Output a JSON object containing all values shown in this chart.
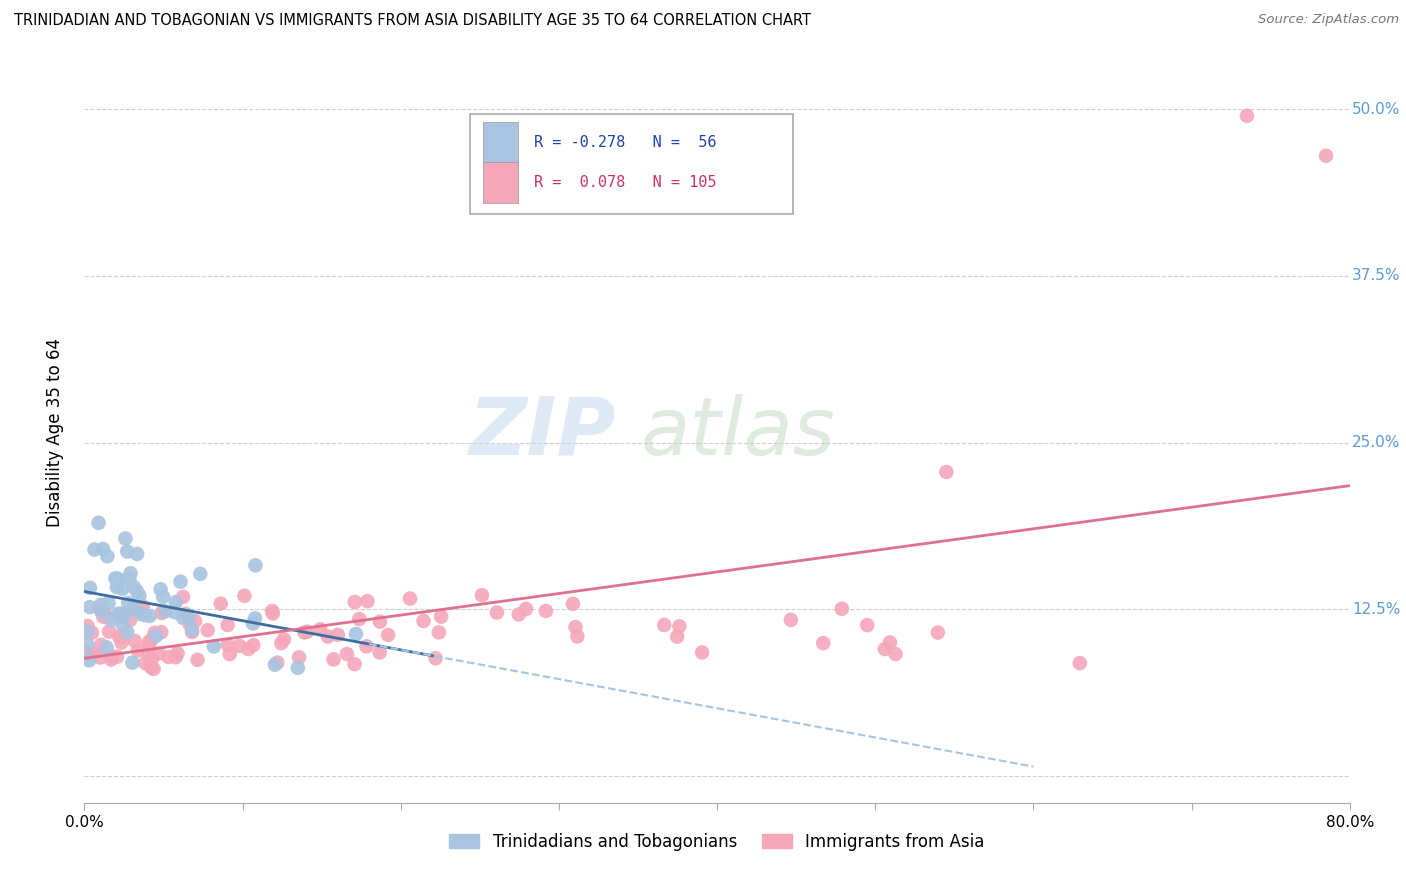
{
  "title": "TRINIDADIAN AND TOBAGONIAN VS IMMIGRANTS FROM ASIA DISABILITY AGE 35 TO 64 CORRELATION CHART",
  "source": "Source: ZipAtlas.com",
  "ylabel": "Disability Age 35 to 64",
  "xlim": [
    0.0,
    0.8
  ],
  "ylim": [
    -0.02,
    0.535
  ],
  "xticks": [
    0.0,
    0.1,
    0.2,
    0.3,
    0.4,
    0.5,
    0.6,
    0.7,
    0.8
  ],
  "xticklabels": [
    "0.0%",
    "",
    "",
    "",
    "",
    "",
    "",
    "",
    "80.0%"
  ],
  "yticks": [
    0.0,
    0.125,
    0.25,
    0.375,
    0.5
  ],
  "yticklabels": [
    "",
    "12.5%",
    "25.0%",
    "37.5%",
    "50.0%"
  ],
  "ytick_color": "#5b9bd5",
  "blue_R": -0.278,
  "blue_N": 56,
  "pink_R": 0.078,
  "pink_N": 105,
  "blue_color": "#a8c4e0",
  "pink_color": "#f4a7b9",
  "blue_line_color": "#3c6fa0",
  "pink_line_color": "#e07090",
  "blue_line_dashed_color": "#a8c4e0",
  "grid_color": "#d0d0d0",
  "legend_label_blue": "Trinidadians and Tobagonians",
  "legend_label_pink": "Immigrants from Asia"
}
